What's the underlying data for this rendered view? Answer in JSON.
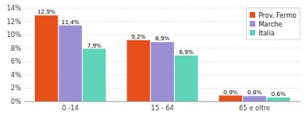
{
  "chart_data": {
    "type": "bar",
    "categories": [
      "0 -14",
      "15 - 64",
      "65 e oltre"
    ],
    "series": [
      {
        "name": "Prov. Fermo",
        "color": "#E8501A",
        "values": [
          12.9,
          9.2,
          0.9
        ],
        "value_labels": [
          "12,9%",
          "9,2%",
          "0,9%"
        ]
      },
      {
        "name": "Marche",
        "color": "#9B8FD4",
        "values": [
          11.4,
          8.9,
          0.8
        ],
        "value_labels": [
          "11,4%",
          "8,9%",
          "0,8%"
        ]
      },
      {
        "name": "Italia",
        "color": "#60D4B8",
        "values": [
          7.9,
          6.9,
          0.6
        ],
        "value_labels": [
          "7,9%",
          "6,9%",
          "0,6%"
        ]
      }
    ],
    "ylim": [
      0,
      14
    ],
    "yticks": [
      {
        "value": 0,
        "label": "0%"
      },
      {
        "value": 2,
        "label": "2%"
      },
      {
        "value": 4,
        "label": "4%"
      },
      {
        "value": 6,
        "label": "6%"
      },
      {
        "value": 8,
        "label": "8%"
      },
      {
        "value": 10,
        "label": "10%"
      },
      {
        "value": 12,
        "label": "12%"
      },
      {
        "value": 14,
        "label": "14%"
      }
    ],
    "grid": true,
    "legend": "upper right",
    "data_labels": true
  }
}
